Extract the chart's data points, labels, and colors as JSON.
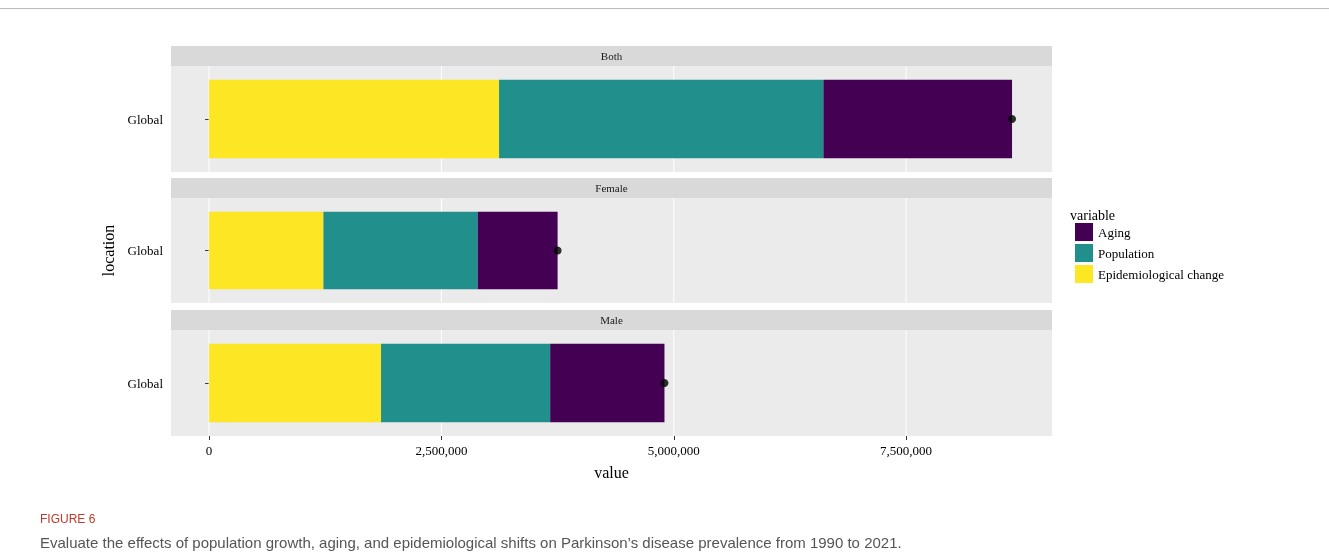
{
  "chart_data": [
    {
      "type": "bar",
      "title": "Both",
      "orientation": "horizontal",
      "stacked": true,
      "categories": [
        "Global"
      ],
      "xlim": [
        -410000,
        9070000
      ],
      "xticks": [
        0,
        2500000,
        5000000,
        7500000
      ],
      "grid": "x",
      "tick_labels": "y",
      "series": [
        {
          "color": "#fde725",
          "values": [
            3120000
          ]
        },
        {
          "color": "#21908c",
          "values": [
            3490000
          ]
        },
        {
          "color": "#440154",
          "values": [
            2030000
          ]
        },
        {
          "type": "scatter",
          "color": "#000000",
          "marker": "circle",
          "x": [
            "Global"
          ],
          "values": [
            8640000
          ]
        }
      ]
    },
    {
      "type": "bar",
      "title": "Female",
      "orientation": "horizontal",
      "stacked": true,
      "categories": [
        "Global"
      ],
      "ylabel": "location",
      "legend": "right",
      "legend_title": "variable",
      "xlim": [
        -410000,
        9070000
      ],
      "xticks": [
        0,
        2500000,
        5000000,
        7500000
      ],
      "grid": "x",
      "tick_labels": "y",
      "series": [
        {
          "name": "Epidemiological change",
          "color": "#fde725",
          "values": [
            1230000
          ]
        },
        {
          "name": "Population",
          "color": "#21908c",
          "values": [
            1660000
          ]
        },
        {
          "name": "Aging",
          "color": "#440154",
          "values": [
            860000
          ]
        },
        {
          "type": "scatter",
          "color": "#000000",
          "marker": "circle",
          "x": [
            "Global"
          ],
          "values": [
            3750000
          ]
        }
      ]
    },
    {
      "type": "bar",
      "title": "Male",
      "orientation": "horizontal",
      "stacked": true,
      "categories": [
        "Global"
      ],
      "xlabel": "value",
      "xlim": [
        -410000,
        9070000
      ],
      "xticks": [
        0,
        {
          "value": 2500000,
          "label": "2,500,000"
        },
        {
          "value": 5000000,
          "label": "5,000,000"
        },
        {
          "value": 7500000,
          "label": "7,500,000"
        }
      ],
      "grid": "x",
      "annotations": [
        "FIGURE 6",
        "Evaluate the effects of population growth, aging, and epidemiological shifts on Parkinson’s disease prevalence from 1990 to 2021."
      ],
      "series": [
        {
          "color": "#fde725",
          "values": [
            1850000
          ]
        },
        {
          "color": "#21908c",
          "values": [
            1820000
          ]
        },
        {
          "color": "#440154",
          "values": [
            1230000
          ]
        },
        {
          "type": "scatter",
          "color": "#000000",
          "marker": "circle",
          "x": [
            "Global"
          ],
          "values": [
            4900000
          ]
        }
      ]
    }
  ]
}
